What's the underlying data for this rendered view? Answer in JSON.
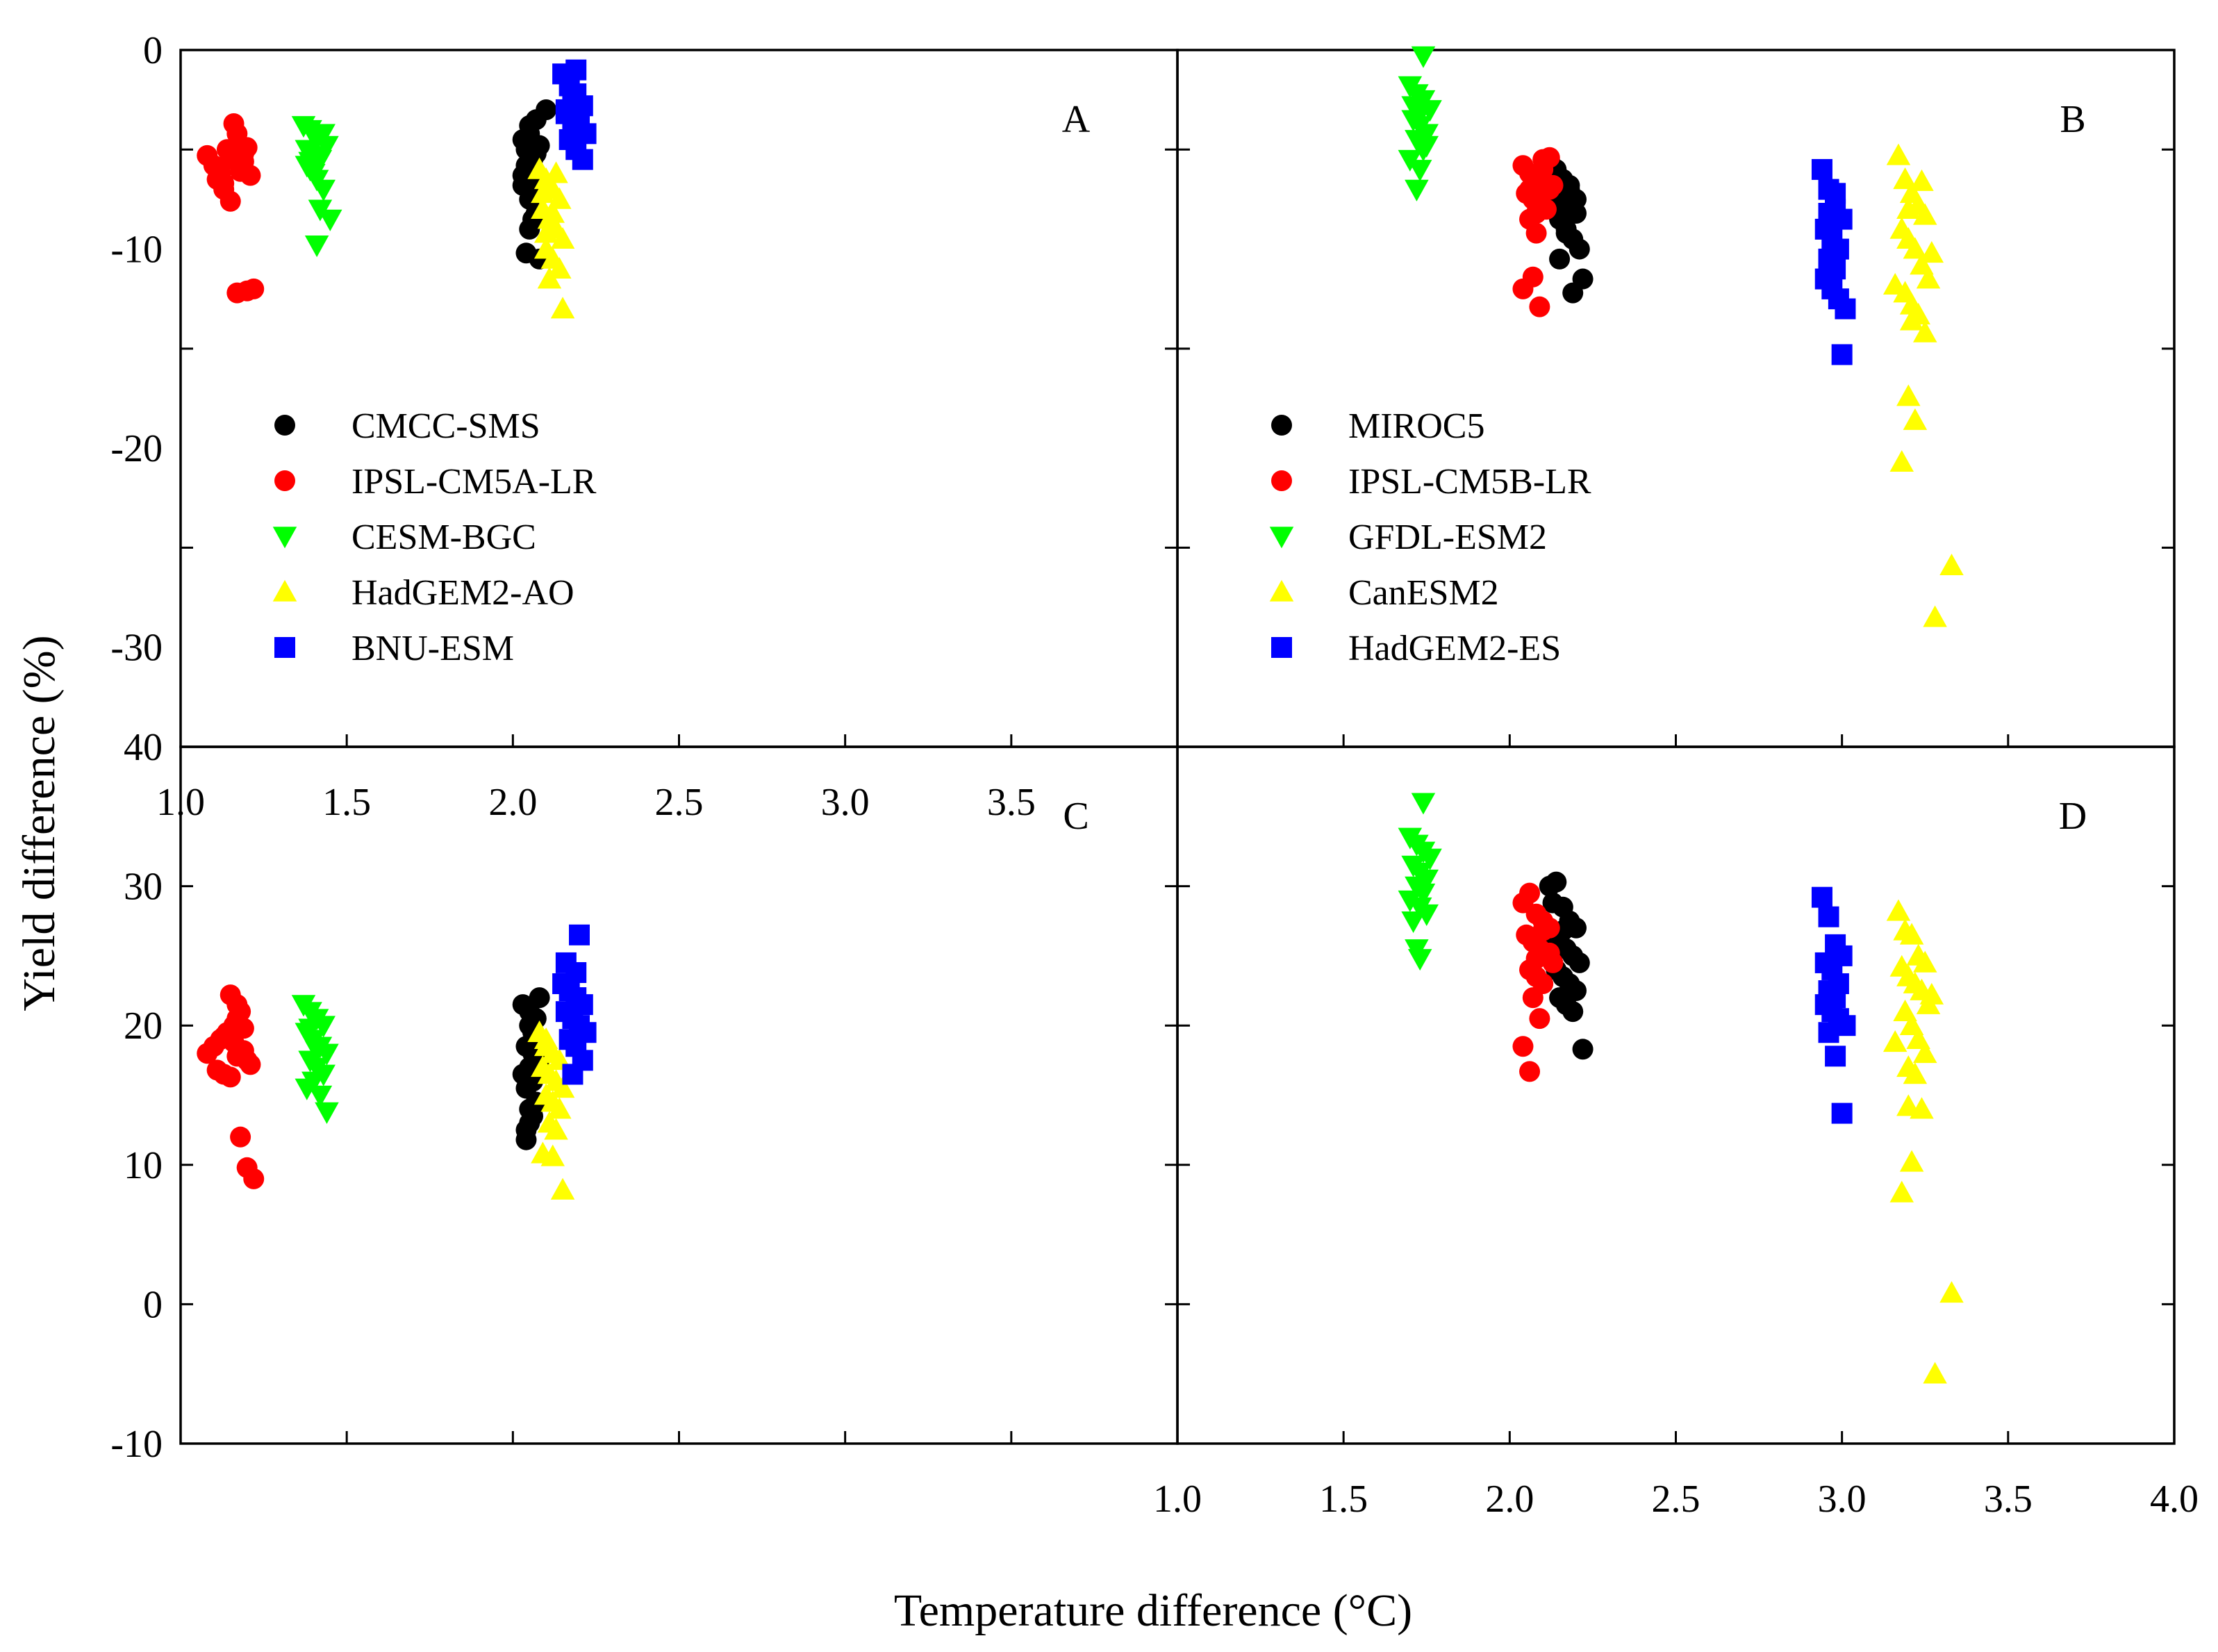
{
  "figure": {
    "xlabel": "Temperature difference (°C)",
    "ylabel": "Yield difference (%)"
  },
  "chart_data": [
    {
      "type": "scatter",
      "panel_label": "A",
      "xlim": [
        1.0,
        4.0
      ],
      "ylim": [
        -35,
        0
      ],
      "x_ticks": [
        "1.0",
        "1.5",
        "2.0",
        "2.5",
        "3.0",
        "3.5"
      ],
      "y_ticks": [
        "0",
        "-10",
        "-20",
        "-30"
      ],
      "grid": false,
      "legend_placement": "center-left",
      "series": [
        {
          "name": "CMCC-SMS",
          "marker": "circle",
          "color": "#000000",
          "x": [
            2.03,
            2.05,
            2.07,
            2.04,
            2.06,
            2.08,
            2.05,
            2.03,
            2.06,
            2.04,
            2.07,
            2.05,
            2.06,
            2.04,
            2.08,
            2.05,
            2.07,
            2.06,
            2.04,
            2.1,
            2.05,
            2.03
          ],
          "y": [
            -4.5,
            -3.8,
            -5.2,
            -6.0,
            -5.5,
            -4.8,
            -6.5,
            -6.8,
            -7.0,
            -5.8,
            -8.2,
            -9.0,
            -8.5,
            -10.2,
            -10.5,
            -4.2,
            -3.5,
            -6.2,
            -5.0,
            -3.0,
            -7.5,
            -6.3
          ]
        },
        {
          "name": "IPSL-CM5A-LR",
          "marker": "circle",
          "color": "#ff0000",
          "x": [
            1.08,
            1.1,
            1.12,
            1.14,
            1.16,
            1.17,
            1.18,
            1.19,
            1.2,
            1.21,
            1.11,
            1.13,
            1.15,
            1.17,
            1.19,
            1.16,
            1.18,
            1.2,
            1.22,
            1.13,
            1.17,
            1.15
          ],
          "y": [
            -5.3,
            -5.8,
            -6.2,
            -5.0,
            -5.5,
            -4.8,
            -6.0,
            -5.2,
            -4.9,
            -6.3,
            -6.5,
            -7.0,
            -7.6,
            -4.2,
            -5.6,
            -3.7,
            -6.1,
            -12.1,
            -12.0,
            -6.7,
            -12.2,
            -5.4
          ]
        },
        {
          "name": "CESM-BGC",
          "marker": "triangle-down",
          "color": "#00ff00",
          "x": [
            1.37,
            1.39,
            1.41,
            1.43,
            1.38,
            1.4,
            1.42,
            1.44,
            1.39,
            1.41,
            1.43,
            1.4,
            1.38,
            1.42,
            1.45,
            1.41,
            1.39
          ],
          "y": [
            -3.8,
            -4.0,
            -4.5,
            -4.2,
            -5.0,
            -5.3,
            -5.5,
            -4.8,
            -6.0,
            -6.5,
            -7.0,
            -6.2,
            -5.8,
            -8.0,
            -8.5,
            -9.8,
            -5.6
          ]
        },
        {
          "name": "HadGEM2-AO",
          "marker": "triangle",
          "color": "#ffff00",
          "x": [
            2.08,
            2.1,
            2.12,
            2.14,
            2.09,
            2.11,
            2.13,
            2.15,
            2.1,
            2.12,
            2.14,
            2.11,
            2.13,
            2.09,
            2.15,
            2.12,
            2.1
          ],
          "y": [
            -6.0,
            -6.5,
            -7.0,
            -7.5,
            -8.0,
            -8.5,
            -9.0,
            -9.5,
            -10.0,
            -10.5,
            -11.0,
            -11.5,
            -6.2,
            -7.2,
            -13.0,
            -8.2,
            -9.2
          ]
        },
        {
          "name": "BNU-ESM",
          "marker": "square",
          "color": "#0000ff",
          "x": [
            2.15,
            2.17,
            2.19,
            2.21,
            2.16,
            2.18,
            2.2,
            2.22,
            2.17,
            2.19,
            2.21,
            2.18,
            2.16,
            2.2,
            2.19
          ],
          "y": [
            -1.2,
            -1.8,
            -2.2,
            -2.8,
            -3.0,
            -3.5,
            -3.8,
            -4.2,
            -4.5,
            -5.0,
            -5.5,
            -2.5,
            -3.2,
            -4.0,
            -1.0
          ]
        }
      ]
    },
    {
      "type": "scatter",
      "panel_label": "B",
      "xlim": [
        1.0,
        4.0
      ],
      "ylim": [
        -35,
        0
      ],
      "grid": false,
      "legend_placement": "center-left",
      "series": [
        {
          "name": "MIROC5",
          "marker": "circle",
          "color": "#000000",
          "x": [
            2.12,
            2.14,
            2.16,
            2.18,
            2.2,
            2.13,
            2.15,
            2.17,
            2.19,
            2.21,
            2.14,
            2.16,
            2.18,
            2.2,
            2.22,
            2.15,
            2.17,
            2.19,
            2.13,
            2.16
          ],
          "y": [
            -5.5,
            -6.0,
            -6.5,
            -7.0,
            -7.5,
            -8.0,
            -8.5,
            -9.0,
            -9.5,
            -10.0,
            -7.2,
            -7.8,
            -6.8,
            -8.2,
            -11.5,
            -10.5,
            -9.2,
            -12.2,
            -6.2,
            -8.6
          ]
        },
        {
          "name": "IPSL-CM5B-LR",
          "marker": "circle",
          "color": "#ff0000",
          "x": [
            2.04,
            2.06,
            2.08,
            2.1,
            2.12,
            2.05,
            2.07,
            2.09,
            2.11,
            2.13,
            2.06,
            2.08,
            2.1,
            2.04,
            2.07,
            2.09,
            2.06,
            2.1,
            2.08,
            2.12
          ],
          "y": [
            -5.8,
            -6.2,
            -6.5,
            -5.5,
            -7.0,
            -7.2,
            -7.5,
            -7.8,
            -8.0,
            -6.8,
            -8.5,
            -9.2,
            -6.0,
            -12.0,
            -11.4,
            -12.9,
            -7.0,
            -6.6,
            -8.2,
            -5.4
          ]
        },
        {
          "name": "GFDL-ESM2",
          "marker": "triangle-down",
          "color": "#00ff00",
          "x": [
            1.7,
            1.72,
            1.74,
            1.76,
            1.71,
            1.73,
            1.75,
            1.72,
            1.74,
            1.7,
            1.73,
            1.75,
            1.71,
            1.74,
            1.72,
            1.73
          ],
          "y": [
            -1.8,
            -2.2,
            -2.5,
            -3.0,
            -3.5,
            -3.8,
            -4.2,
            -4.5,
            -5.0,
            -5.5,
            -6.0,
            -4.8,
            -2.8,
            -0.3,
            -7.0,
            -3.2
          ]
        },
        {
          "name": "CanESM2",
          "marker": "triangle",
          "color": "#ffff00",
          "x": [
            3.17,
            3.19,
            3.21,
            3.23,
            3.25,
            3.18,
            3.2,
            3.22,
            3.24,
            3.26,
            3.19,
            3.21,
            3.23,
            3.25,
            3.2,
            3.22,
            3.18,
            3.21,
            3.2,
            3.33,
            3.28,
            3.24,
            3.27,
            3.16
          ],
          "y": [
            -5.3,
            -6.5,
            -7.2,
            -7.8,
            -8.3,
            -9.0,
            -9.5,
            -10.0,
            -10.8,
            -11.5,
            -12.2,
            -12.8,
            -13.3,
            -14.2,
            -17.4,
            -18.6,
            -20.7,
            -13.6,
            -8.0,
            -25.9,
            -28.5,
            -6.6,
            -10.2,
            -11.8
          ]
        },
        {
          "name": "HadGEM2-ES",
          "marker": "square",
          "color": "#0000ff",
          "x": [
            2.94,
            2.96,
            2.98,
            3.0,
            2.95,
            2.97,
            2.99,
            2.96,
            2.98,
            2.95,
            2.97,
            2.99,
            3.01,
            2.96,
            3.0,
            2.98
          ],
          "y": [
            -6.0,
            -7.0,
            -8.0,
            -8.5,
            -9.0,
            -9.5,
            -10.0,
            -10.5,
            -11.0,
            -11.5,
            -12.0,
            -12.5,
            -13.0,
            -8.2,
            -15.3,
            -7.2
          ]
        }
      ]
    },
    {
      "type": "scatter",
      "panel_label": "C",
      "xlim": [
        1.0,
        4.0
      ],
      "ylim": [
        -10,
        40
      ],
      "y_ticks": [
        "40",
        "30",
        "20",
        "10",
        "0",
        "-10"
      ],
      "grid": false,
      "series": [
        {
          "name": "CMCC-SMS",
          "marker": "circle",
          "color": "#000000",
          "x": [
            2.03,
            2.05,
            2.07,
            2.04,
            2.06,
            2.08,
            2.05,
            2.03,
            2.06,
            2.04,
            2.07,
            2.05,
            2.06,
            2.04,
            2.08,
            2.05,
            2.07,
            2.06,
            2.04,
            2.05
          ],
          "y": [
            21.5,
            20.0,
            19.0,
            18.5,
            18.0,
            17.5,
            17.0,
            16.5,
            16.0,
            15.5,
            14.5,
            14.0,
            13.5,
            12.5,
            22.0,
            21.0,
            20.5,
            19.5,
            11.8,
            13.0
          ]
        },
        {
          "name": "IPSL-CM5A-LR",
          "marker": "circle",
          "color": "#ff0000",
          "x": [
            1.08,
            1.1,
            1.12,
            1.14,
            1.16,
            1.17,
            1.18,
            1.19,
            1.2,
            1.21,
            1.11,
            1.13,
            1.15,
            1.17,
            1.19,
            1.16,
            1.18,
            1.2,
            1.22,
            1.13,
            1.17,
            1.15
          ],
          "y": [
            18.0,
            18.5,
            19.0,
            19.5,
            20.0,
            20.5,
            21.0,
            18.2,
            17.5,
            17.2,
            16.8,
            16.5,
            22.2,
            21.5,
            19.8,
            18.8,
            12.0,
            9.8,
            9.0,
            19.2,
            17.8,
            16.3
          ]
        },
        {
          "name": "CESM-BGC",
          "marker": "triangle-down",
          "color": "#00ff00",
          "x": [
            1.37,
            1.39,
            1.41,
            1.43,
            1.38,
            1.4,
            1.42,
            1.44,
            1.39,
            1.41,
            1.43,
            1.4,
            1.38,
            1.42,
            1.44,
            1.41,
            1.39
          ],
          "y": [
            21.5,
            21.0,
            20.5,
            20.0,
            19.5,
            19.0,
            18.5,
            18.0,
            17.5,
            17.0,
            16.5,
            16.0,
            15.5,
            15.0,
            13.8,
            18.2,
            19.8
          ]
        },
        {
          "name": "HadGEM2-AO",
          "marker": "triangle",
          "color": "#ffff00",
          "x": [
            2.08,
            2.1,
            2.12,
            2.14,
            2.09,
            2.11,
            2.13,
            2.15,
            2.1,
            2.12,
            2.14,
            2.11,
            2.13,
            2.09,
            2.15,
            2.12,
            2.1
          ],
          "y": [
            19.5,
            18.5,
            18.0,
            17.5,
            17.0,
            16.5,
            16.0,
            15.5,
            15.0,
            14.5,
            14.0,
            13.0,
            12.5,
            10.8,
            8.2,
            10.6,
            19.0
          ]
        },
        {
          "name": "BNU-ESM",
          "marker": "square",
          "color": "#0000ff",
          "x": [
            2.15,
            2.17,
            2.19,
            2.21,
            2.16,
            2.18,
            2.2,
            2.22,
            2.17,
            2.19,
            2.21,
            2.18,
            2.16,
            2.2,
            2.19
          ],
          "y": [
            23.0,
            22.5,
            22.0,
            21.5,
            21.0,
            20.5,
            20.0,
            19.5,
            19.0,
            18.5,
            17.5,
            16.5,
            24.5,
            26.5,
            23.8
          ]
        }
      ]
    },
    {
      "type": "scatter",
      "panel_label": "D",
      "xlim": [
        1.0,
        4.0
      ],
      "ylim": [
        -10,
        40
      ],
      "x_ticks": [
        "1.0",
        "1.5",
        "2.0",
        "2.5",
        "3.0",
        "3.5",
        "4.0"
      ],
      "grid": false,
      "series": [
        {
          "name": "MIROC5",
          "marker": "circle",
          "color": "#000000",
          "x": [
            2.12,
            2.14,
            2.16,
            2.18,
            2.2,
            2.13,
            2.15,
            2.17,
            2.19,
            2.21,
            2.14,
            2.16,
            2.18,
            2.2,
            2.22,
            2.15,
            2.17,
            2.19,
            2.13,
            2.16
          ],
          "y": [
            30.0,
            30.3,
            28.5,
            27.5,
            27.0,
            26.5,
            26.0,
            25.5,
            25.0,
            24.5,
            24.0,
            23.5,
            23.0,
            22.5,
            18.3,
            22.0,
            21.5,
            21.0,
            28.8,
            26.8
          ]
        },
        {
          "name": "IPSL-CM5B-LR",
          "marker": "circle",
          "color": "#ff0000",
          "x": [
            2.04,
            2.06,
            2.08,
            2.1,
            2.12,
            2.05,
            2.07,
            2.09,
            2.11,
            2.13,
            2.06,
            2.08,
            2.1,
            2.04,
            2.07,
            2.09,
            2.06,
            2.1,
            2.08,
            2.12
          ],
          "y": [
            28.8,
            29.5,
            28.0,
            27.5,
            27.0,
            26.5,
            26.0,
            25.5,
            25.0,
            24.5,
            24.0,
            23.5,
            23.0,
            18.5,
            22.0,
            20.5,
            16.7,
            26.8,
            24.8,
            25.2
          ]
        },
        {
          "name": "GFDL-ESM2",
          "marker": "triangle-down",
          "color": "#00ff00",
          "x": [
            1.7,
            1.72,
            1.74,
            1.76,
            1.71,
            1.73,
            1.75,
            1.72,
            1.74,
            1.7,
            1.73,
            1.75,
            1.71,
            1.74,
            1.72,
            1.73
          ],
          "y": [
            33.5,
            33.0,
            32.5,
            32.0,
            31.5,
            31.0,
            30.5,
            30.0,
            29.5,
            29.0,
            28.5,
            28.0,
            27.5,
            36.0,
            25.5,
            24.8
          ]
        },
        {
          "name": "CanESM2",
          "marker": "triangle",
          "color": "#ffff00",
          "x": [
            3.17,
            3.19,
            3.21,
            3.23,
            3.25,
            3.18,
            3.2,
            3.22,
            3.24,
            3.26,
            3.19,
            3.21,
            3.23,
            3.25,
            3.2,
            3.22,
            3.18,
            3.21,
            3.2,
            3.33,
            3.28,
            3.24,
            3.27,
            3.16
          ],
          "y": [
            28.2,
            26.8,
            26.5,
            25.0,
            24.5,
            24.2,
            23.5,
            23.0,
            22.5,
            21.5,
            21.0,
            20.0,
            19.0,
            18.0,
            17.0,
            16.5,
            8.0,
            10.2,
            14.2,
            0.8,
            -5.0,
            14.0,
            22.2,
            18.8
          ]
        },
        {
          "name": "HadGEM2-ES",
          "marker": "square",
          "color": "#0000ff",
          "x": [
            2.94,
            2.96,
            2.98,
            3.0,
            2.95,
            2.97,
            2.99,
            2.96,
            2.98,
            2.95,
            2.97,
            2.99,
            3.01,
            2.96,
            3.0,
            2.98
          ],
          "y": [
            29.2,
            27.8,
            25.8,
            25.0,
            24.5,
            24.0,
            23.0,
            22.5,
            22.0,
            21.5,
            21.0,
            20.5,
            20.0,
            19.5,
            13.7,
            17.8
          ]
        }
      ]
    }
  ]
}
